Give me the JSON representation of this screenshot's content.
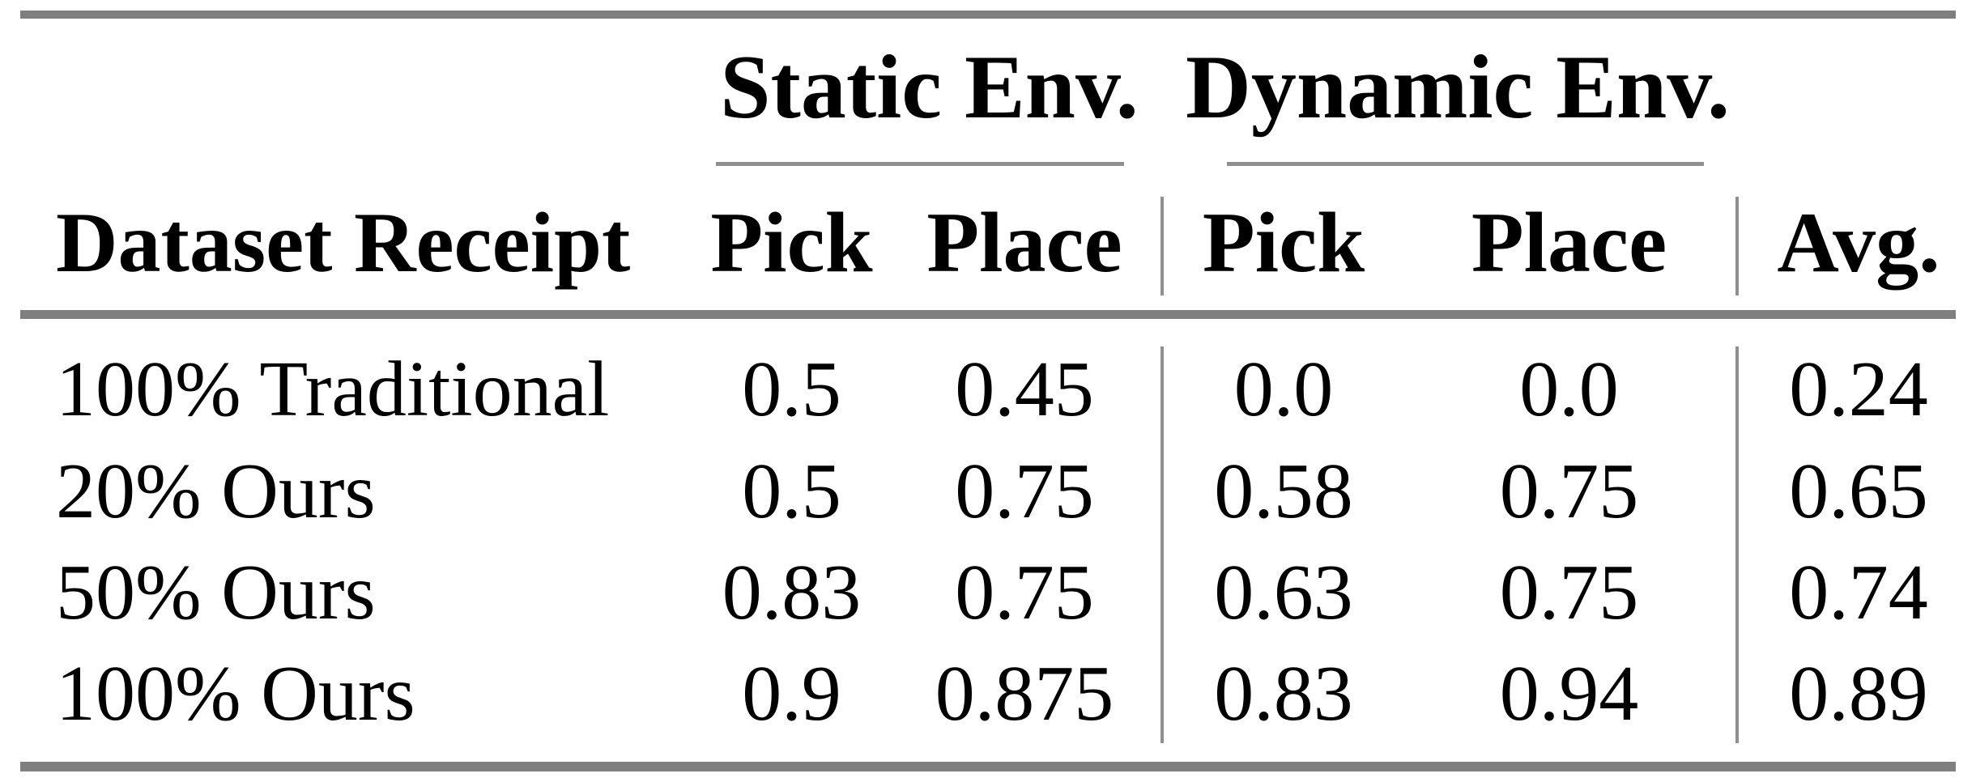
{
  "table": {
    "col_groups": [
      {
        "label": "Static Env."
      },
      {
        "label": "Dynamic Env."
      }
    ],
    "columns": {
      "dataset": "Dataset Receipt",
      "static_pick": "Pick",
      "static_place": "Place",
      "dynamic_pick": "Pick",
      "dynamic_place": "Place",
      "avg": "Avg."
    },
    "rows": [
      {
        "label": "100% Traditional",
        "values": [
          "0.5",
          "0.45",
          "0.0",
          "0.0",
          "0.24"
        ]
      },
      {
        "label": "20% Ours",
        "values": [
          "0.5",
          "0.75",
          "0.58",
          "0.75",
          "0.65"
        ]
      },
      {
        "label": "50% Ours",
        "values": [
          "0.83",
          "0.75",
          "0.63",
          "0.75",
          "0.74"
        ]
      },
      {
        "label": "100% Ours",
        "values": [
          "0.9",
          "0.875",
          "0.83",
          "0.94",
          "0.89"
        ]
      }
    ],
    "colors": {
      "thick_rule": "#7f7f7f",
      "thin_rule": "#8f8f8f",
      "text": "#000000",
      "background": "#ffffff"
    }
  },
  "chart_data": {
    "type": "table",
    "title": "",
    "categories": [
      "100% Traditional",
      "20% Ours",
      "50% Ours",
      "100% Ours"
    ],
    "series": [
      {
        "name": "Static Env. Pick",
        "values": [
          0.5,
          0.5,
          0.83,
          0.9
        ]
      },
      {
        "name": "Static Env. Place",
        "values": [
          0.45,
          0.75,
          0.75,
          0.875
        ]
      },
      {
        "name": "Dynamic Env. Pick",
        "values": [
          0.0,
          0.58,
          0.63,
          0.83
        ]
      },
      {
        "name": "Dynamic Env. Place",
        "values": [
          0.0,
          0.75,
          0.75,
          0.94
        ]
      },
      {
        "name": "Avg.",
        "values": [
          0.24,
          0.65,
          0.74,
          0.89
        ]
      }
    ]
  }
}
